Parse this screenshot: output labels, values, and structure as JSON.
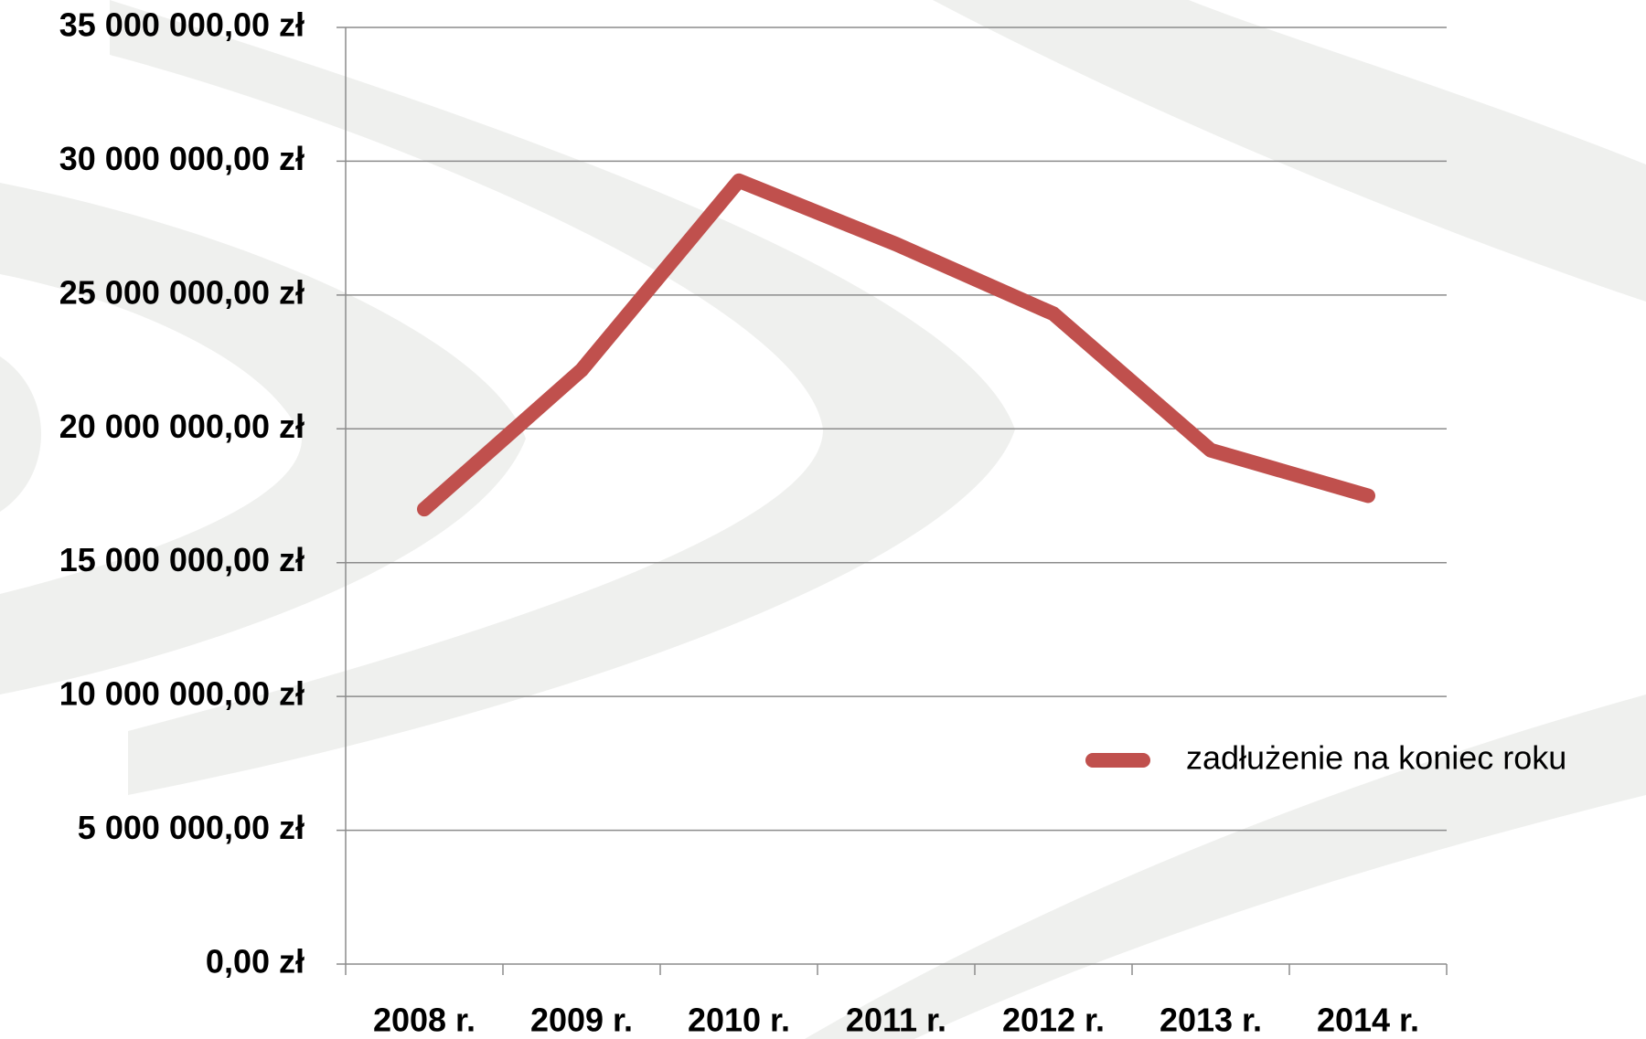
{
  "chart_data": {
    "type": "line",
    "categories": [
      "2008 r.",
      "2009 r.",
      "2010 r.",
      "2011 r.",
      "2012 r.",
      "2013 r.",
      "2014 r."
    ],
    "series": [
      {
        "name": "zadłużenie na koniec roku",
        "color": "#c0504d",
        "values": [
          17000000,
          22200000,
          29270000,
          26900000,
          24300000,
          19200000,
          17500000
        ]
      }
    ],
    "ylim": [
      0,
      35000000
    ],
    "yticks": [
      {
        "value": 0,
        "label": "0,00 zł"
      },
      {
        "value": 5000000,
        "label": "5 000 000,00 zł"
      },
      {
        "value": 10000000,
        "label": "10 000 000,00 zł"
      },
      {
        "value": 15000000,
        "label": "15 000 000,00 zł"
      },
      {
        "value": 20000000,
        "label": "20 000 000,00 zł"
      },
      {
        "value": 25000000,
        "label": "25 000 000,00 zł"
      },
      {
        "value": 30000000,
        "label": "30 000 000,00 zł"
      },
      {
        "value": 35000000,
        "label": "35 000 000,00 zł"
      }
    ],
    "grid": true,
    "legend": "right"
  }
}
